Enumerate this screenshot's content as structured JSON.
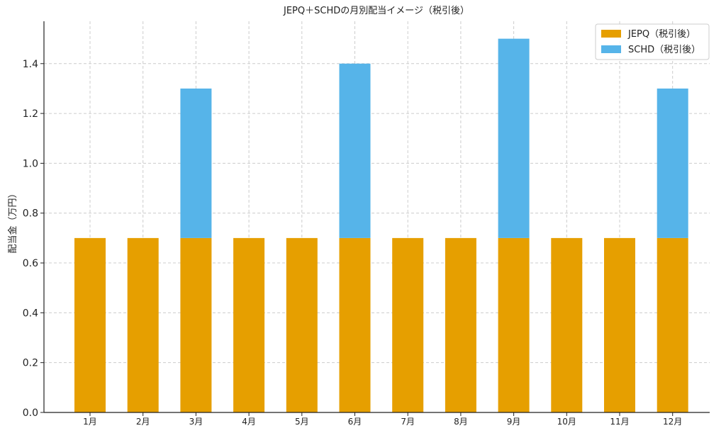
{
  "chart_data": {
    "type": "bar",
    "stacked": true,
    "title": "JEPQ＋SCHDの月別配当イメージ（税引後）",
    "xlabel": "",
    "ylabel": "配当金（万円）",
    "categories": [
      "1月",
      "2月",
      "3月",
      "4月",
      "5月",
      "6月",
      "7月",
      "8月",
      "9月",
      "10月",
      "11月",
      "12月"
    ],
    "series": [
      {
        "name": "JEPQ（税引後）",
        "color": "#E69F00",
        "values": [
          0.7,
          0.7,
          0.7,
          0.7,
          0.7,
          0.7,
          0.7,
          0.7,
          0.7,
          0.7,
          0.7,
          0.7
        ]
      },
      {
        "name": "SCHD（税引後）",
        "color": "#56B4E9",
        "values": [
          0,
          0,
          0.6,
          0,
          0,
          0.7,
          0,
          0,
          0.8,
          0,
          0,
          0.6
        ]
      }
    ],
    "ylim": [
      0,
      1.57
    ],
    "yticks": [
      "0.0",
      "0.2",
      "0.4",
      "0.6",
      "0.8",
      "1.0",
      "1.2",
      "1.4"
    ],
    "grid": true,
    "legend_position": "top-right"
  }
}
